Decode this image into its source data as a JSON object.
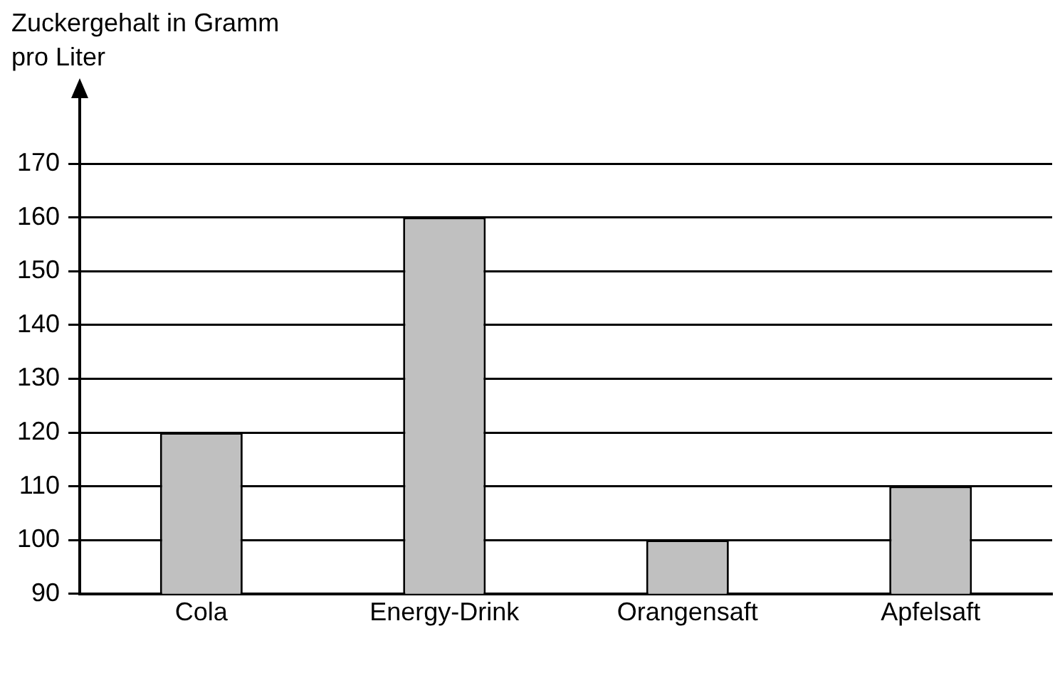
{
  "chart_data": {
    "type": "bar",
    "ylabel": "Zuckergehalt in Gramm pro Liter",
    "categories": [
      "Cola",
      "Energy-Drink",
      "Orangensaft",
      "Apfelsaft"
    ],
    "values": [
      120,
      160,
      100,
      110
    ],
    "color": "#c0c0c0",
    "ylim": [
      90,
      170
    ],
    "yticks": [
      90,
      100,
      110,
      120,
      130,
      140,
      150,
      160,
      170
    ],
    "grid": "y",
    "legend": false
  }
}
